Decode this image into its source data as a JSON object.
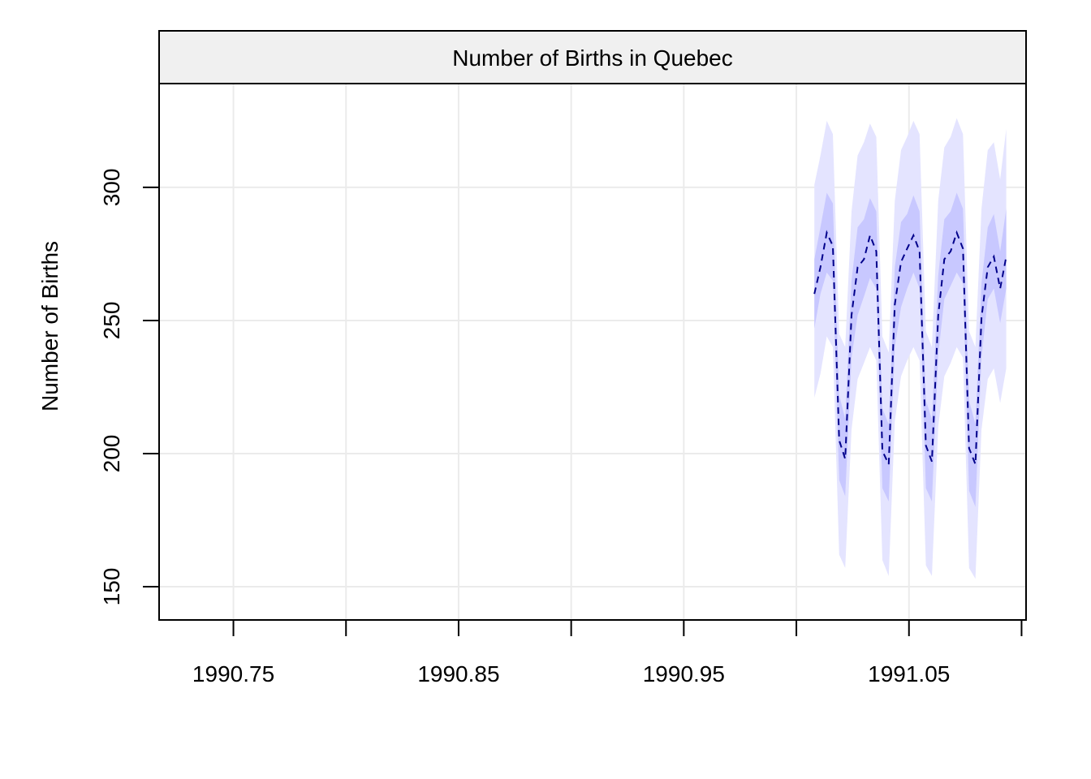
{
  "chart_data": {
    "type": "line",
    "title": "Number of Births in Quebec",
    "xlabel": "",
    "ylabel": "Number of Births",
    "xlim": [
      1990.717,
      1991.102
    ],
    "ylim": [
      137.5,
      339
    ],
    "x_ticks": [
      1990.75,
      1990.8,
      1990.85,
      1990.9,
      1990.95,
      1991.0,
      1991.05,
      1991.1
    ],
    "x_tick_labels": [
      "1990.75",
      "1990.85",
      "1990.95",
      "1991.05"
    ],
    "x_tick_labels_at": [
      1990.75,
      1990.85,
      1990.95,
      1991.05
    ],
    "y_ticks": [
      150,
      200,
      250,
      300
    ],
    "y_tick_labels": [
      "150",
      "200",
      "250",
      "300"
    ],
    "grid": true,
    "colors": {
      "forecast_line": "#00008b",
      "band_inner": "#c8c8ff",
      "band_outer": "#e4e4ff",
      "grid": "#ebebeb",
      "strip": "#f0f0f0"
    },
    "forecast": {
      "name": "",
      "x": [
        1991.008,
        1991.0107,
        1991.0135,
        1991.0162,
        1991.019,
        1991.0217,
        1991.0245,
        1991.0272,
        1991.03,
        1991.0327,
        1991.0355,
        1991.0382,
        1991.041,
        1991.0437,
        1991.0465,
        1991.0492,
        1991.052,
        1991.0547,
        1991.0575,
        1991.0602,
        1991.063,
        1991.0657,
        1991.0685,
        1991.0712,
        1991.074,
        1991.0767,
        1991.0795,
        1991.0822,
        1991.085,
        1991.0877,
        1991.0905,
        1991.0932
      ],
      "mean": [
        260,
        270,
        283,
        278,
        205,
        198,
        252,
        270,
        273,
        282,
        276,
        201,
        196,
        256,
        272,
        277,
        282,
        276,
        203,
        197,
        252,
        273,
        276,
        283,
        277,
        202,
        196,
        251,
        270,
        274,
        262,
        274
      ],
      "lower80": [
        247,
        260,
        268,
        265,
        190,
        184,
        236,
        252,
        259,
        266,
        262,
        187,
        182,
        240,
        255,
        262,
        268,
        262,
        187,
        182,
        237,
        258,
        263,
        268,
        264,
        186,
        180,
        236,
        258,
        262,
        249,
        262
      ],
      "upper80": [
        273,
        285,
        298,
        294,
        222,
        213,
        265,
        285,
        288,
        296,
        291,
        217,
        211,
        270,
        287,
        290,
        297,
        291,
        220,
        213,
        267,
        288,
        291,
        298,
        292,
        220,
        211,
        264,
        285,
        290,
        276,
        292
      ],
      "lower95": [
        221,
        230,
        244,
        240,
        162,
        157,
        209,
        228,
        234,
        240,
        235,
        160,
        154,
        212,
        229,
        235,
        240,
        235,
        158,
        154,
        210,
        229,
        234,
        240,
        236,
        157,
        153,
        209,
        228,
        232,
        219,
        232
      ],
      "upper95": [
        301,
        312,
        325,
        320,
        245,
        240,
        291,
        312,
        317,
        324,
        319,
        244,
        238,
        295,
        314,
        319,
        325,
        320,
        246,
        240,
        295,
        315,
        319,
        326,
        320,
        246,
        240,
        292,
        314,
        317,
        303,
        322
      ]
    }
  }
}
